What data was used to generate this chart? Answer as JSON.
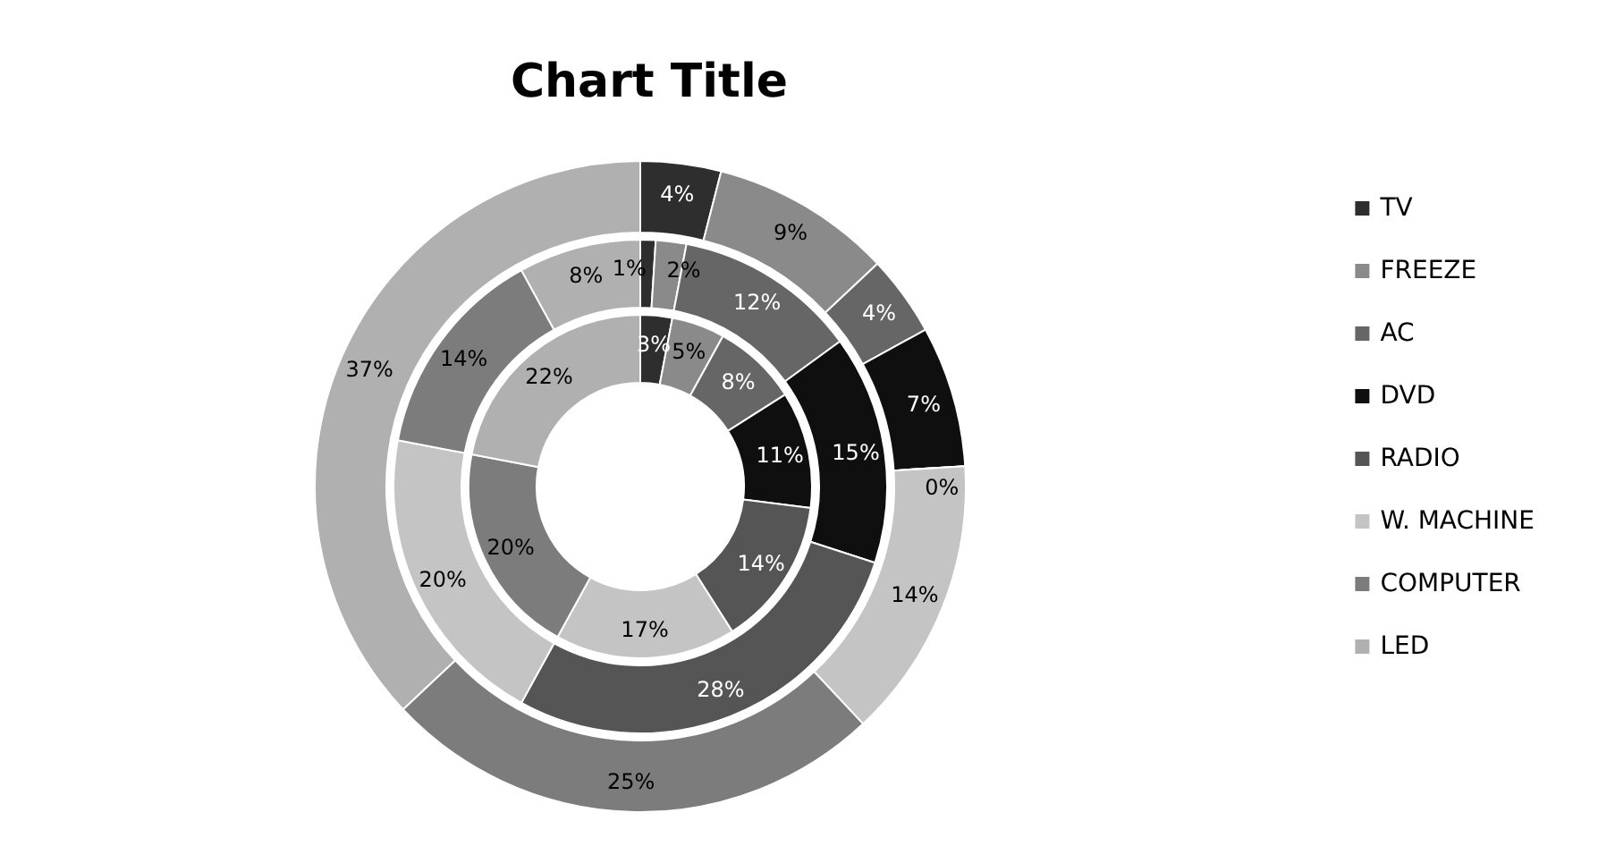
{
  "chart_data": {
    "type": "donut",
    "title": "Chart Title",
    "categories": [
      "TV",
      "FREEZE",
      "AC",
      "DVD",
      "RADIO",
      "W. MACHINE",
      "COMPUTER",
      "LED"
    ],
    "colors": [
      "#2e2e2e",
      "#8a8a8a",
      "#666666",
      "#0f0f0f",
      "#555555",
      "#c4c4c4",
      "#7c7c7c",
      "#b0b0b0"
    ],
    "series": [
      {
        "values": [
          4,
          9,
          4,
          7,
          0,
          14,
          25,
          37
        ],
        "value_labels": [
          "4%",
          "9%",
          "4%",
          "7%",
          "0%",
          "14%",
          "25%",
          "37%"
        ]
      },
      {
        "values": [
          1,
          2,
          12,
          15,
          28,
          20,
          14,
          8
        ],
        "value_labels": [
          "1%",
          "2%",
          "12%",
          "15%",
          "28%",
          "20%",
          "14%",
          "8%"
        ]
      },
      {
        "values": [
          3,
          5,
          8,
          11,
          14,
          17,
          20,
          22
        ],
        "value_labels": [
          "3%",
          "5%",
          "8%",
          "11%",
          "14%",
          "17%",
          "20%",
          "22%"
        ]
      }
    ],
    "legend": "right"
  }
}
